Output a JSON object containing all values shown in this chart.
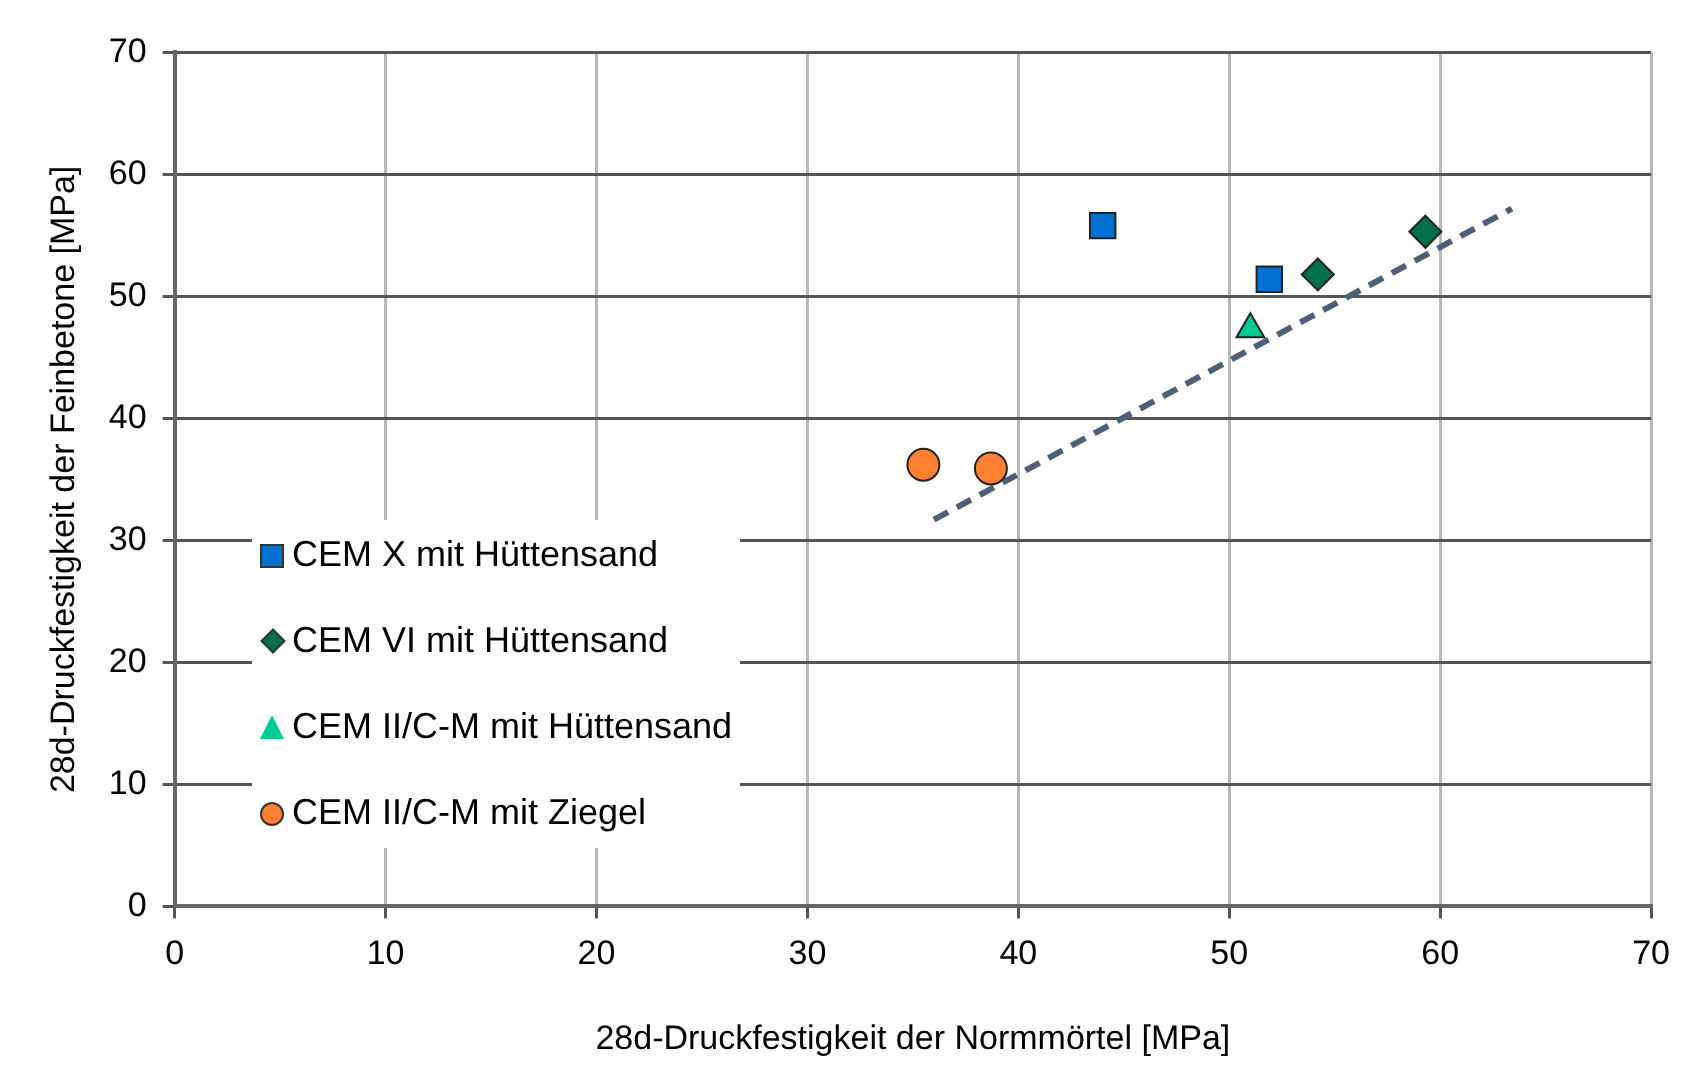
{
  "chart_data": {
    "type": "scatter",
    "xlabel": "28d-Druckfestigkeit der Normmörtel [MPa]",
    "ylabel": "28d-Druckfestigkeit der Feinbetone [MPa]",
    "xlim": [
      0,
      70
    ],
    "ylim": [
      0,
      70
    ],
    "xticks": [
      0,
      10,
      20,
      30,
      40,
      50,
      60,
      70
    ],
    "yticks": [
      0,
      10,
      20,
      30,
      40,
      50,
      60,
      70
    ],
    "grid": true,
    "legend": "left",
    "series": [
      {
        "name": "CEM X mit Hüttensand",
        "color": "#0070d0",
        "marker": "square",
        "x": [
          44.0,
          51.9
        ],
        "values": [
          55.8,
          51.4
        ]
      },
      {
        "name": "CEM VI mit Hüttensand",
        "color": "#00704a",
        "marker": "diamond",
        "x": [
          54.2,
          59.3
        ],
        "values": [
          51.8,
          55.3
        ]
      },
      {
        "name": "CEM II/C-M mit Hüttensand",
        "color": "#00cc90",
        "marker": "triangle",
        "x": [
          51.0
        ],
        "values": [
          47.3
        ]
      },
      {
        "name": "CEM II/C-M mit Ziegel",
        "color": "#ff7f33",
        "marker": "circle",
        "x": [
          35.5,
          38.7
        ],
        "values": [
          36.2,
          35.9
        ]
      },
      {
        "type": "line",
        "color": "#4f5f78",
        "line_style": "dashed",
        "marker": "none",
        "x": [
          36.0,
          63.4
        ],
        "values": [
          31.7,
          57.2
        ]
      }
    ]
  }
}
